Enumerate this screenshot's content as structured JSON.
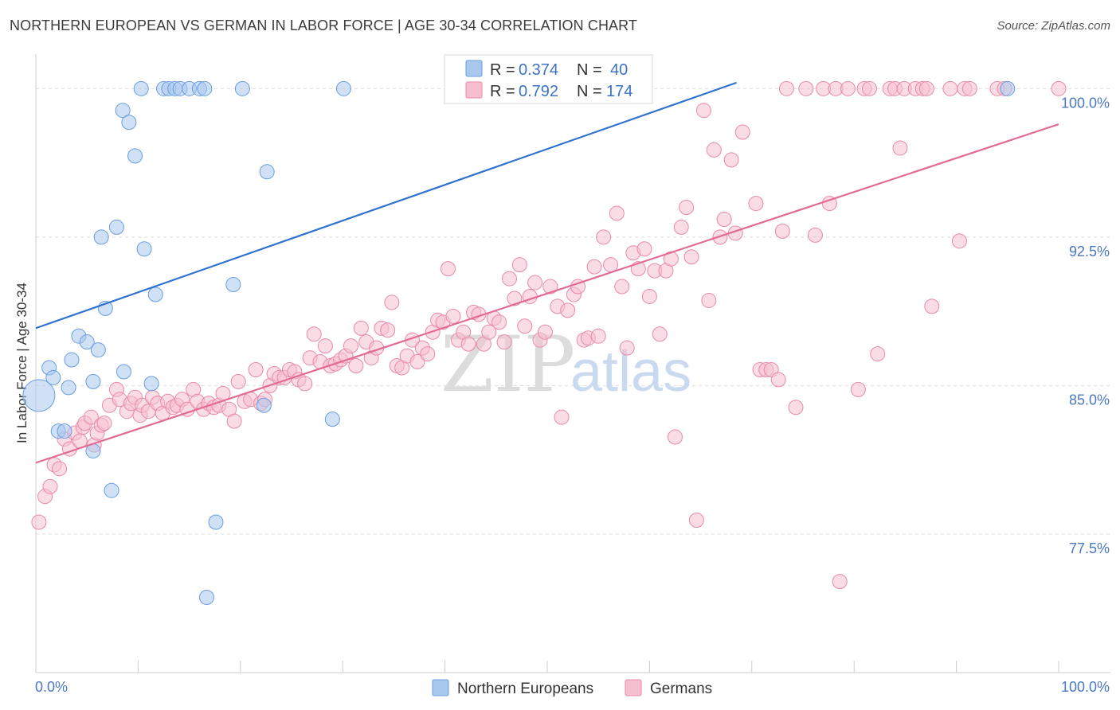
{
  "title": "NORTHERN EUROPEAN VS GERMAN IN LABOR FORCE | AGE 30-34 CORRELATION CHART",
  "source": "Source: ZipAtlas.com",
  "watermark": {
    "zip": "ZIP",
    "atlas": "atlas"
  },
  "colors": {
    "blue_fill": "#a9c8ee",
    "blue_stroke": "#6a9de0",
    "blue_line": "#2f72d0",
    "pink_fill": "#f6bfd0",
    "pink_stroke": "#e88aa8",
    "pink_line": "#e26b95",
    "grid": "#dddddd",
    "axis_text": "#4a78c2"
  },
  "legend": {
    "rows": [
      {
        "r_label": "R =",
        "r_value": "0.374",
        "n_label": "N =",
        "n_value": "40"
      },
      {
        "r_label": "R =",
        "r_value": "0.792",
        "n_label": "N =",
        "n_value": "174"
      }
    ]
  },
  "bottom_legend": [
    "Northern Europeans",
    "Germans"
  ],
  "chart_data": {
    "type": "scatter",
    "title": "NORTHERN EUROPEAN VS GERMAN IN LABOR FORCE | AGE 30-34 CORRELATION CHART",
    "xlabel": "",
    "ylabel": "In Labor Force | Age 30-34",
    "xlim": [
      0,
      100
    ],
    "ylim": [
      70.5,
      101.3
    ],
    "x_tick_labels": [
      "0.0%",
      "100.0%"
    ],
    "y_ticks": [
      77.5,
      85.0,
      92.5,
      100.0
    ],
    "y_tick_labels": [
      "77.5%",
      "85.0%",
      "92.5%",
      "100.0%"
    ],
    "series": [
      {
        "name": "Northern Europeans",
        "R": 0.374,
        "N": 40,
        "trend": [
          [
            0,
            87.9
          ],
          [
            68.5,
            100.3
          ]
        ],
        "points": [
          [
            0.3,
            84.5
          ],
          [
            1.3,
            85.9
          ],
          [
            1.7,
            85.4
          ],
          [
            2.2,
            82.7
          ],
          [
            2.8,
            82.7
          ],
          [
            3.2,
            84.9
          ],
          [
            3.5,
            86.3
          ],
          [
            4.2,
            87.5
          ],
          [
            5.0,
            87.2
          ],
          [
            5.6,
            81.7
          ],
          [
            5.6,
            85.2
          ],
          [
            6.1,
            86.8
          ],
          [
            6.4,
            92.5
          ],
          [
            6.8,
            88.9
          ],
          [
            7.4,
            79.7
          ],
          [
            7.9,
            93.0
          ],
          [
            8.5,
            98.9
          ],
          [
            8.6,
            85.7
          ],
          [
            9.1,
            98.3
          ],
          [
            9.7,
            96.6
          ],
          [
            10.3,
            100.0
          ],
          [
            10.6,
            91.9
          ],
          [
            11.3,
            85.1
          ],
          [
            11.7,
            89.6
          ],
          [
            12.5,
            100.0
          ],
          [
            13.0,
            100.0
          ],
          [
            13.6,
            100.0
          ],
          [
            14.1,
            100.0
          ],
          [
            15.0,
            100.0
          ],
          [
            16.0,
            100.0
          ],
          [
            16.5,
            100.0
          ],
          [
            16.7,
            74.3
          ],
          [
            17.6,
            78.1
          ],
          [
            19.3,
            90.1
          ],
          [
            20.2,
            100.0
          ],
          [
            22.3,
            84.0
          ],
          [
            22.6,
            95.8
          ],
          [
            29.0,
            83.3
          ],
          [
            30.1,
            100.0
          ],
          [
            95.0,
            100.0
          ]
        ]
      },
      {
        "name": "Germans",
        "R": 0.792,
        "N": 174,
        "trend": [
          [
            0,
            81.1
          ],
          [
            100,
            98.2
          ]
        ],
        "points": [
          [
            0.3,
            78.1
          ],
          [
            0.9,
            79.4
          ],
          [
            1.4,
            79.9
          ],
          [
            1.8,
            81.0
          ],
          [
            2.3,
            80.8
          ],
          [
            2.8,
            82.3
          ],
          [
            3.3,
            81.8
          ],
          [
            3.8,
            82.6
          ],
          [
            4.3,
            82.2
          ],
          [
            4.6,
            82.9
          ],
          [
            4.8,
            83.1
          ],
          [
            5.4,
            83.4
          ],
          [
            5.7,
            82.0
          ],
          [
            6.0,
            82.6
          ],
          [
            6.4,
            83.0
          ],
          [
            6.7,
            83.1
          ],
          [
            7.2,
            84.0
          ],
          [
            7.9,
            84.8
          ],
          [
            8.2,
            84.3
          ],
          [
            8.9,
            83.7
          ],
          [
            9.3,
            84.1
          ],
          [
            9.7,
            84.4
          ],
          [
            10.2,
            83.5
          ],
          [
            10.4,
            84.0
          ],
          [
            11.0,
            83.7
          ],
          [
            11.4,
            84.4
          ],
          [
            11.9,
            84.1
          ],
          [
            12.4,
            83.6
          ],
          [
            12.9,
            84.2
          ],
          [
            13.4,
            83.9
          ],
          [
            13.8,
            84.0
          ],
          [
            14.3,
            84.3
          ],
          [
            14.8,
            83.8
          ],
          [
            15.4,
            84.8
          ],
          [
            15.8,
            84.2
          ],
          [
            16.4,
            83.8
          ],
          [
            16.9,
            84.1
          ],
          [
            17.4,
            83.9
          ],
          [
            17.9,
            84.0
          ],
          [
            18.3,
            84.6
          ],
          [
            18.9,
            83.8
          ],
          [
            19.4,
            83.2
          ],
          [
            19.8,
            85.2
          ],
          [
            20.4,
            84.2
          ],
          [
            21.0,
            84.3
          ],
          [
            21.5,
            85.8
          ],
          [
            22.0,
            84.1
          ],
          [
            22.4,
            84.3
          ],
          [
            22.9,
            85.0
          ],
          [
            23.3,
            85.6
          ],
          [
            23.8,
            85.4
          ],
          [
            24.3,
            85.4
          ],
          [
            24.8,
            85.8
          ],
          [
            25.3,
            85.7
          ],
          [
            25.7,
            85.3
          ],
          [
            26.3,
            85.1
          ],
          [
            26.8,
            86.4
          ],
          [
            27.2,
            87.6
          ],
          [
            27.8,
            86.2
          ],
          [
            28.3,
            87.0
          ],
          [
            28.8,
            86.0
          ],
          [
            29.3,
            86.1
          ],
          [
            29.8,
            86.3
          ],
          [
            30.3,
            86.5
          ],
          [
            30.8,
            87.0
          ],
          [
            31.3,
            86.0
          ],
          [
            31.8,
            87.9
          ],
          [
            32.3,
            87.2
          ],
          [
            32.8,
            86.4
          ],
          [
            33.3,
            86.9
          ],
          [
            33.8,
            87.9
          ],
          [
            34.4,
            87.8
          ],
          [
            34.8,
            89.2
          ],
          [
            35.3,
            86.0
          ],
          [
            35.8,
            85.9
          ],
          [
            36.3,
            86.5
          ],
          [
            36.8,
            87.3
          ],
          [
            37.3,
            86.2
          ],
          [
            37.8,
            86.9
          ],
          [
            38.3,
            86.6
          ],
          [
            38.8,
            87.7
          ],
          [
            39.3,
            88.3
          ],
          [
            39.8,
            88.2
          ],
          [
            40.3,
            90.9
          ],
          [
            40.8,
            88.5
          ],
          [
            41.3,
            87.3
          ],
          [
            41.8,
            87.7
          ],
          [
            42.3,
            87.1
          ],
          [
            42.8,
            88.7
          ],
          [
            43.3,
            88.6
          ],
          [
            43.8,
            87.1
          ],
          [
            44.3,
            87.7
          ],
          [
            44.8,
            88.4
          ],
          [
            45.3,
            88.2
          ],
          [
            45.8,
            87.2
          ],
          [
            46.3,
            90.4
          ],
          [
            46.8,
            89.4
          ],
          [
            47.3,
            91.1
          ],
          [
            47.8,
            88.0
          ],
          [
            48.3,
            89.5
          ],
          [
            48.8,
            90.2
          ],
          [
            49.3,
            87.3
          ],
          [
            49.8,
            87.7
          ],
          [
            50.3,
            90.0
          ],
          [
            51.0,
            89.0
          ],
          [
            51.4,
            83.4
          ],
          [
            52.0,
            88.8
          ],
          [
            52.6,
            89.6
          ],
          [
            53.0,
            90.0
          ],
          [
            53.6,
            87.3
          ],
          [
            54.0,
            87.4
          ],
          [
            54.6,
            91.0
          ],
          [
            55.0,
            87.5
          ],
          [
            55.5,
            92.5
          ],
          [
            56.2,
            91.1
          ],
          [
            56.8,
            93.7
          ],
          [
            57.3,
            90.0
          ],
          [
            57.8,
            86.9
          ],
          [
            58.4,
            91.7
          ],
          [
            58.9,
            90.9
          ],
          [
            59.5,
            91.9
          ],
          [
            60.0,
            89.5
          ],
          [
            60.5,
            90.8
          ],
          [
            61.0,
            87.6
          ],
          [
            61.6,
            90.8
          ],
          [
            62.1,
            91.4
          ],
          [
            62.5,
            82.4
          ],
          [
            63.1,
            93.0
          ],
          [
            63.6,
            94.0
          ],
          [
            64.1,
            91.5
          ],
          [
            64.6,
            78.2
          ],
          [
            65.3,
            98.9
          ],
          [
            65.8,
            89.3
          ],
          [
            66.3,
            96.9
          ],
          [
            66.9,
            92.5
          ],
          [
            67.3,
            93.4
          ],
          [
            68.0,
            96.4
          ],
          [
            68.4,
            92.7
          ],
          [
            69.1,
            97.8
          ],
          [
            70.4,
            94.2
          ],
          [
            70.8,
            85.8
          ],
          [
            71.4,
            85.8
          ],
          [
            71.9,
            85.8
          ],
          [
            72.6,
            85.3
          ],
          [
            73.0,
            92.8
          ],
          [
            73.4,
            100.0
          ],
          [
            74.3,
            83.9
          ],
          [
            75.3,
            100.0
          ],
          [
            76.2,
            92.6
          ],
          [
            77.0,
            100.0
          ],
          [
            77.6,
            94.2
          ],
          [
            78.2,
            100.0
          ],
          [
            78.6,
            75.1
          ],
          [
            79.4,
            100.0
          ],
          [
            80.4,
            84.8
          ],
          [
            81.0,
            100.0
          ],
          [
            81.5,
            100.0
          ],
          [
            82.3,
            86.6
          ],
          [
            83.5,
            100.0
          ],
          [
            84.0,
            100.0
          ],
          [
            84.5,
            97.0
          ],
          [
            84.9,
            100.0
          ],
          [
            86.0,
            100.0
          ],
          [
            86.7,
            100.0
          ],
          [
            87.1,
            100.0
          ],
          [
            87.6,
            89.0
          ],
          [
            89.4,
            100.0
          ],
          [
            90.3,
            92.3
          ],
          [
            90.8,
            100.0
          ],
          [
            91.3,
            100.0
          ],
          [
            94.0,
            100.0
          ],
          [
            94.7,
            100.0
          ],
          [
            100.0,
            100.0
          ]
        ]
      }
    ]
  }
}
